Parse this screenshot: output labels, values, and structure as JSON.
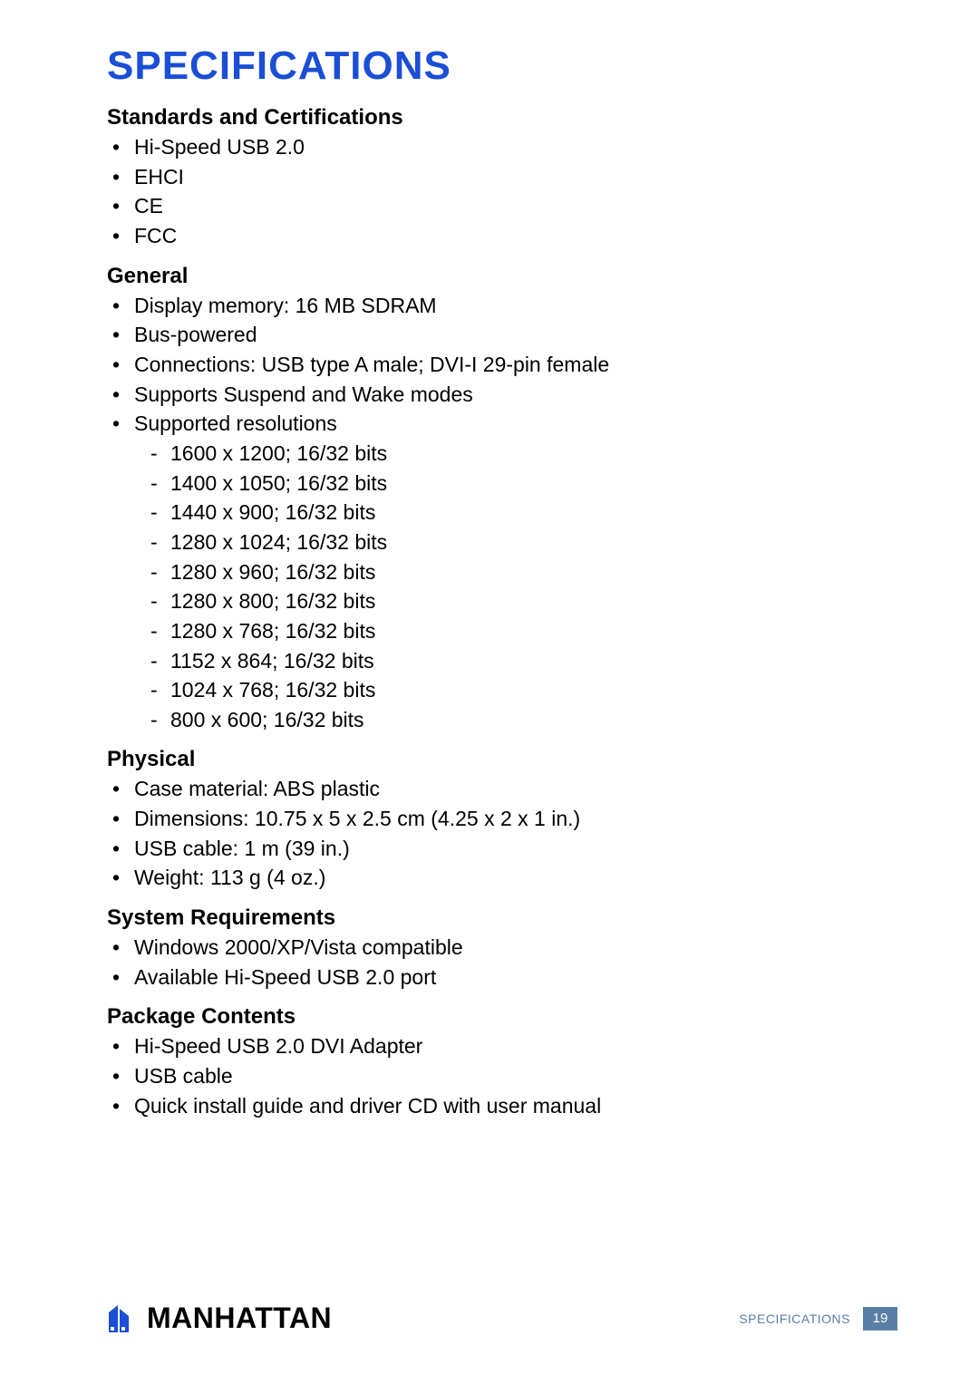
{
  "title": {
    "text": "SPECIFICATIONS",
    "color": "#1a4fd6"
  },
  "sections": [
    {
      "heading": "Standards and Certifications",
      "items": [
        {
          "text": "Hi-Speed USB 2.0"
        },
        {
          "text": "EHCI"
        },
        {
          "text": "CE"
        },
        {
          "text": "FCC"
        }
      ]
    },
    {
      "heading": "General",
      "items": [
        {
          "text": "Display memory: 16 MB SDRAM"
        },
        {
          "text": "Bus-powered"
        },
        {
          "text": "Connections: USB type A male; DVI-I 29-pin female"
        },
        {
          "text": "Supports Suspend and Wake modes"
        },
        {
          "text": "Supported resolutions",
          "subitems": [
            "1600 x 1200; 16/32 bits",
            "1400 x 1050; 16/32 bits",
            "1440 x 900; 16/32 bits",
            "1280 x 1024; 16/32 bits",
            "1280 x 960; 16/32 bits",
            "1280 x 800; 16/32 bits",
            "1280 x 768; 16/32 bits",
            "1152 x 864; 16/32 bits",
            "1024 x 768; 16/32 bits",
            "800 x 600; 16/32 bits"
          ]
        }
      ]
    },
    {
      "heading": "Physical",
      "items": [
        {
          "text": "Case material: ABS plastic"
        },
        {
          "text": "Dimensions: 10.75 x 5 x 2.5 cm (4.25 x 2 x 1 in.)"
        },
        {
          "text": "USB cable: 1 m (39 in.)"
        },
        {
          "text": "Weight: 113 g (4 oz.)"
        }
      ]
    },
    {
      "heading": "System Requirements",
      "items": [
        {
          "text": "Windows 2000/XP/Vista compatible"
        },
        {
          "text": "Available Hi-Speed USB 2.0 port"
        }
      ]
    },
    {
      "heading": "Package Contents",
      "items": [
        {
          "text": "Hi-Speed USB 2.0 DVI Adapter"
        },
        {
          "text": "USB cable"
        },
        {
          "text": "Quick install guide and driver CD with user manual"
        }
      ]
    }
  ],
  "footer": {
    "logo_text": "MANHATTAN",
    "logo_mark_color": "#1a4fd6",
    "label": "SPECIFICATIONS",
    "label_color": "#5a7fa6",
    "page_number": "19",
    "page_bg": "#5a7fa6"
  }
}
